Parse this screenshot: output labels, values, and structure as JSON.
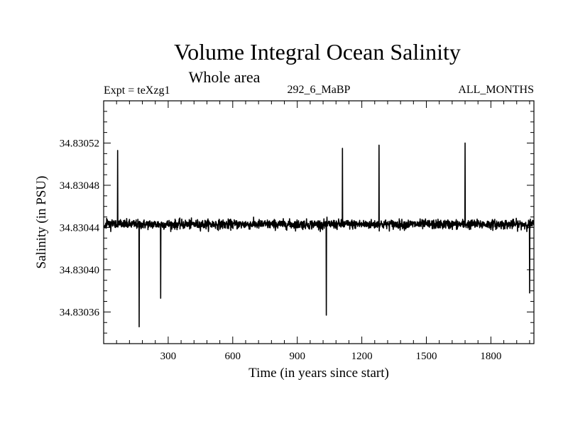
{
  "chart_data": {
    "type": "line",
    "title": "Volume Integral Ocean Salinity",
    "subtitle": "Whole area",
    "header_left": "Expt = teXzg1",
    "header_center": "292_6_MaBP",
    "header_right": "ALL_MONTHS",
    "xlabel": "Time (in years since start)",
    "ylabel": "Salinity (in PSU)",
    "xlim": [
      0,
      2000
    ],
    "ylim": [
      34.83033,
      34.83056
    ],
    "x_ticks": [
      300,
      600,
      900,
      1200,
      1500,
      1800
    ],
    "x_tick_labels": [
      "300",
      "600",
      "900",
      "1200",
      "1500",
      "1800"
    ],
    "y_ticks": [
      34.83036,
      34.8304,
      34.83044,
      34.83048,
      34.83052
    ],
    "y_tick_labels": [
      "34.83036",
      "34.83040",
      "34.83044",
      "34.83048",
      "34.83052"
    ],
    "grid": false,
    "series": [
      {
        "name": "Salinity",
        "x_start": 1,
        "x_step": 1,
        "n_points": 2000,
        "mean": 34.830443,
        "std": 2.2e-06,
        "min_value": 34.830346,
        "min_x": 165,
        "max_value": 34.83052,
        "max_x": 1680,
        "notable_points": [
          {
            "x": 165,
            "value": 34.830346
          },
          {
            "x": 1035,
            "value": 34.830357
          },
          {
            "x": 265,
            "value": 34.830373
          },
          {
            "x": 1980,
            "value": 34.830378
          },
          {
            "x": 1280,
            "value": 34.830518
          },
          {
            "x": 1680,
            "value": 34.83052
          },
          {
            "x": 65,
            "value": 34.830513
          },
          {
            "x": 1110,
            "value": 34.830515
          }
        ]
      }
    ]
  }
}
